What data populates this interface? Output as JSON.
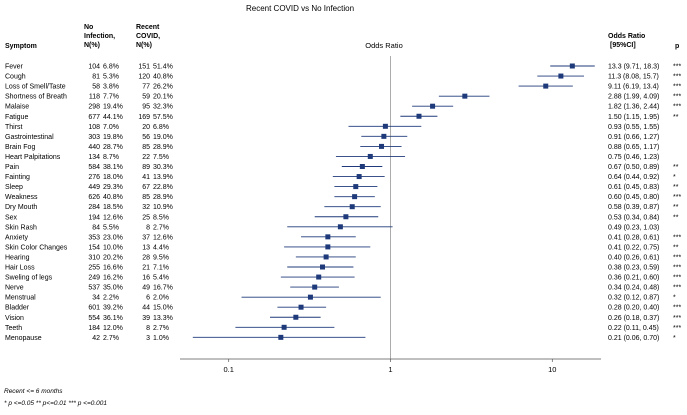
{
  "chart_data": {
    "type": "forest",
    "title": "Recent COVID vs No Infection",
    "columns": {
      "symptom": "Symptom",
      "no_infection": [
        "No",
        "Infection,",
        "N(%)"
      ],
      "recent": [
        "Recent",
        "COVID,",
        "N(%)"
      ],
      "plot": "Odds Ratio",
      "or": [
        "Odds Ratio",
        "[95%CI]"
      ],
      "p": "p"
    },
    "x_axis": {
      "scale": "log",
      "range": [
        0.05,
        20
      ],
      "ticks": [
        0.1,
        1,
        10
      ],
      "tick_labels": [
        "0.1",
        "1",
        "10"
      ]
    },
    "reference_line": 1,
    "rows": [
      {
        "symptom": "Fever",
        "no_n": "104",
        "no_pct": "6.8%",
        "rec_n": "151",
        "rec_pct": "51.4%",
        "or": 13.3,
        "lo": 9.71,
        "hi": 18.3,
        "or_text": "13.3 (9.71, 18.3)",
        "p": "***"
      },
      {
        "symptom": "Cough",
        "no_n": "81",
        "no_pct": "5.3%",
        "rec_n": "120",
        "rec_pct": "40.8%",
        "or": 11.3,
        "lo": 8.08,
        "hi": 15.7,
        "or_text": "11.3 (8.08, 15.7)",
        "p": "***"
      },
      {
        "symptom": "Loss of Smell/Taste",
        "no_n": "58",
        "no_pct": "3.8%",
        "rec_n": "77",
        "rec_pct": "26.2%",
        "or": 9.11,
        "lo": 6.19,
        "hi": 13.4,
        "or_text": "9.11 (6.19, 13.4)",
        "p": "***"
      },
      {
        "symptom": "Shortness of Breath",
        "no_n": "118",
        "no_pct": "7.7%",
        "rec_n": "59",
        "rec_pct": "20.1%",
        "or": 2.88,
        "lo": 1.99,
        "hi": 4.09,
        "or_text": "2.88 (1.99, 4.09)",
        "p": "***"
      },
      {
        "symptom": "Malaise",
        "no_n": "298",
        "no_pct": "19.4%",
        "rec_n": "95",
        "rec_pct": "32.3%",
        "or": 1.82,
        "lo": 1.36,
        "hi": 2.44,
        "or_text": "1.82 (1.36, 2.44)",
        "p": "***"
      },
      {
        "symptom": "Fatigue",
        "no_n": "677",
        "no_pct": "44.1%",
        "rec_n": "169",
        "rec_pct": "57.5%",
        "or": 1.5,
        "lo": 1.15,
        "hi": 1.95,
        "or_text": "1.50 (1.15, 1.95)",
        "p": "**"
      },
      {
        "symptom": "Thirst",
        "no_n": "108",
        "no_pct": "7.0%",
        "rec_n": "20",
        "rec_pct": "6.8%",
        "or": 0.93,
        "lo": 0.55,
        "hi": 1.55,
        "or_text": "0.93 (0.55, 1.55)",
        "p": ""
      },
      {
        "symptom": "Gastrointestinal",
        "no_n": "303",
        "no_pct": "19.8%",
        "rec_n": "56",
        "rec_pct": "19.0%",
        "or": 0.91,
        "lo": 0.66,
        "hi": 1.27,
        "or_text": "0.91 (0.66, 1.27)",
        "p": ""
      },
      {
        "symptom": "Brain Fog",
        "no_n": "440",
        "no_pct": "28.7%",
        "rec_n": "85",
        "rec_pct": "28.9%",
        "or": 0.88,
        "lo": 0.65,
        "hi": 1.17,
        "or_text": "0.88 (0.65, 1.17)",
        "p": ""
      },
      {
        "symptom": "Heart Palpitations",
        "no_n": "134",
        "no_pct": "8.7%",
        "rec_n": "22",
        "rec_pct": "7.5%",
        "or": 0.75,
        "lo": 0.46,
        "hi": 1.23,
        "or_text": "0.75 (0.46, 1.23)",
        "p": ""
      },
      {
        "symptom": "Pain",
        "no_n": "584",
        "no_pct": "38.1%",
        "rec_n": "89",
        "rec_pct": "30.3%",
        "or": 0.67,
        "lo": 0.5,
        "hi": 0.89,
        "or_text": "0.67 (0.50, 0.89)",
        "p": "**"
      },
      {
        "symptom": "Fainting",
        "no_n": "276",
        "no_pct": "18.0%",
        "rec_n": "41",
        "rec_pct": "13.9%",
        "or": 0.64,
        "lo": 0.44,
        "hi": 0.92,
        "or_text": "0.64 (0.44, 0.92)",
        "p": "*"
      },
      {
        "symptom": "Sleep",
        "no_n": "449",
        "no_pct": "29.3%",
        "rec_n": "67",
        "rec_pct": "22.8%",
        "or": 0.61,
        "lo": 0.45,
        "hi": 0.83,
        "or_text": "0.61 (0.45, 0.83)",
        "p": "**"
      },
      {
        "symptom": "Weakness",
        "no_n": "626",
        "no_pct": "40.8%",
        "rec_n": "85",
        "rec_pct": "28.9%",
        "or": 0.6,
        "lo": 0.45,
        "hi": 0.8,
        "or_text": "0.60 (0.45, 0.80)",
        "p": "***"
      },
      {
        "symptom": "Dry Mouth",
        "no_n": "284",
        "no_pct": "18.5%",
        "rec_n": "32",
        "rec_pct": "10.9%",
        "or": 0.58,
        "lo": 0.39,
        "hi": 0.87,
        "or_text": "0.58 (0.39, 0.87)",
        "p": "**"
      },
      {
        "symptom": "Sex",
        "no_n": "194",
        "no_pct": "12.6%",
        "rec_n": "25",
        "rec_pct": "8.5%",
        "or": 0.53,
        "lo": 0.34,
        "hi": 0.84,
        "or_text": "0.53 (0.34, 0.84)",
        "p": "**"
      },
      {
        "symptom": "Skin Rash",
        "no_n": "84",
        "no_pct": "5.5%",
        "rec_n": "8",
        "rec_pct": "2.7%",
        "or": 0.49,
        "lo": 0.23,
        "hi": 1.03,
        "or_text": "0.49 (0.23, 1.03)",
        "p": ""
      },
      {
        "symptom": "Anxiety",
        "no_n": "353",
        "no_pct": "23.0%",
        "rec_n": "37",
        "rec_pct": "12.6%",
        "or": 0.41,
        "lo": 0.28,
        "hi": 0.61,
        "or_text": "0.41 (0.28, 0.61)",
        "p": "***"
      },
      {
        "symptom": "Skin Color Changes",
        "no_n": "154",
        "no_pct": "10.0%",
        "rec_n": "13",
        "rec_pct": "4.4%",
        "or": 0.41,
        "lo": 0.22,
        "hi": 0.75,
        "or_text": "0.41 (0.22, 0.75)",
        "p": "**"
      },
      {
        "symptom": "Hearing",
        "no_n": "310",
        "no_pct": "20.2%",
        "rec_n": "28",
        "rec_pct": "9.5%",
        "or": 0.4,
        "lo": 0.26,
        "hi": 0.61,
        "or_text": "0.40 (0.26, 0.61)",
        "p": "***"
      },
      {
        "symptom": "Hair Loss",
        "no_n": "255",
        "no_pct": "16.6%",
        "rec_n": "21",
        "rec_pct": "7.1%",
        "or": 0.38,
        "lo": 0.23,
        "hi": 0.59,
        "or_text": "0.38 (0.23, 0.59)",
        "p": "***"
      },
      {
        "symptom": "Sweling of legs",
        "no_n": "249",
        "no_pct": "16.2%",
        "rec_n": "16",
        "rec_pct": "5.4%",
        "or": 0.36,
        "lo": 0.21,
        "hi": 0.6,
        "or_text": "0.36 (0.21, 0.60)",
        "p": "***"
      },
      {
        "symptom": "Nerve",
        "no_n": "537",
        "no_pct": "35.0%",
        "rec_n": "49",
        "rec_pct": "16.7%",
        "or": 0.34,
        "lo": 0.24,
        "hi": 0.48,
        "or_text": "0.34 (0.24, 0.48)",
        "p": "***"
      },
      {
        "symptom": "Menstrual",
        "no_n": "34",
        "no_pct": "2.2%",
        "rec_n": "6",
        "rec_pct": "2.0%",
        "or": 0.32,
        "lo": 0.12,
        "hi": 0.87,
        "or_text": "0.32 (0.12, 0.87)",
        "p": "*"
      },
      {
        "symptom": "Bladder",
        "no_n": "601",
        "no_pct": "39.2%",
        "rec_n": "44",
        "rec_pct": "15.0%",
        "or": 0.28,
        "lo": 0.2,
        "hi": 0.4,
        "or_text": "0.28 (0.20, 0.40)",
        "p": "***"
      },
      {
        "symptom": "Vision",
        "no_n": "554",
        "no_pct": "36.1%",
        "rec_n": "39",
        "rec_pct": "13.3%",
        "or": 0.26,
        "lo": 0.18,
        "hi": 0.37,
        "or_text": "0.26 (0.18, 0.37)",
        "p": "***"
      },
      {
        "symptom": "Teeth",
        "no_n": "184",
        "no_pct": "12.0%",
        "rec_n": "8",
        "rec_pct": "2.7%",
        "or": 0.22,
        "lo": 0.11,
        "hi": 0.45,
        "or_text": "0.22 (0.11, 0.45)",
        "p": "***"
      },
      {
        "symptom": "Menopause",
        "no_n": "42",
        "no_pct": "2.7%",
        "rec_n": "3",
        "rec_pct": "1.0%",
        "or": 0.21,
        "lo": 0.06,
        "hi": 0.7,
        "or_text": "0.21 (0.06, 0.70)",
        "p": "*"
      }
    ],
    "footnotes": [
      "Recent <= 6 months",
      "* p <=0.05 ** p<=0.01 *** p <=0.001"
    ],
    "colors": {
      "marker": "#1f3a7a",
      "ci_line": "#1f3a7a",
      "axis": "#555555",
      "ref_line": "#888888"
    }
  }
}
